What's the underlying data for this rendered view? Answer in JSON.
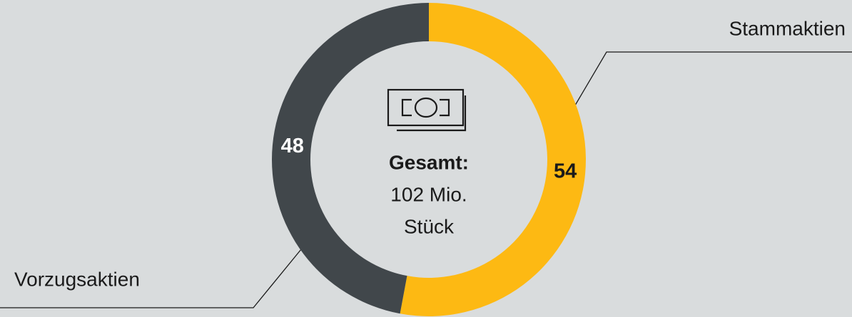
{
  "chart_data": {
    "type": "donut",
    "categories": [
      "Stammaktien",
      "Vorzugsaktien"
    ],
    "values": [
      54,
      48
    ],
    "colors": [
      "#fdb913",
      "#41474b"
    ],
    "center_text": [
      "Gesamt:",
      "102 Mio.",
      "Stück"
    ]
  }
}
